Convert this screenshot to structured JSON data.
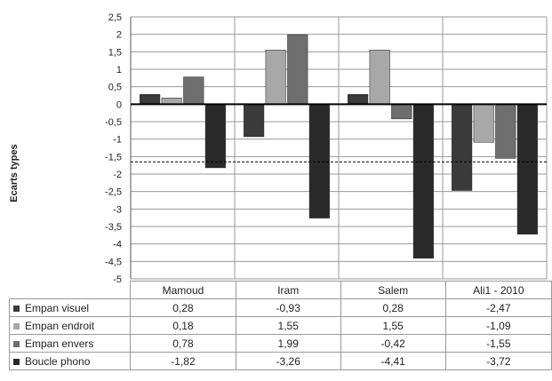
{
  "chart_data": {
    "type": "bar",
    "title": "",
    "xlabel": "",
    "ylabel": "Ecarts types",
    "ylim": [
      -5,
      2.5
    ],
    "ytick_step": 0.5,
    "grid": true,
    "reference_line": -1.65,
    "categories": [
      "Mamoud",
      "Iram",
      "Salem",
      "Ali1 - 2010"
    ],
    "series": [
      {
        "name": "Empan visuel",
        "color": "#3a3a3a",
        "values": [
          0.28,
          -0.93,
          0.28,
          -2.47
        ],
        "labels": [
          "0,28",
          "-0,93",
          "0,28",
          "-2,47"
        ]
      },
      {
        "name": "Empan endroit",
        "color": "#a8a8a8",
        "values": [
          0.18,
          1.55,
          1.55,
          -1.09
        ],
        "labels": [
          "0,18",
          "1,55",
          "1,55",
          "-1,09"
        ]
      },
      {
        "name": "Empan envers",
        "color": "#6e6e6e",
        "values": [
          0.78,
          1.99,
          -0.42,
          -1.55
        ],
        "labels": [
          "0,78",
          "1,99",
          "-0,42",
          "-1,55"
        ]
      },
      {
        "name": "Boucle phono",
        "color": "#2a2a2a",
        "values": [
          -1.82,
          -3.26,
          -4.41,
          -3.72
        ],
        "labels": [
          "-1,82",
          "-3,26",
          "-4,41",
          "-3,72"
        ]
      }
    ],
    "yticks": [
      "2,5",
      "2",
      "1,5",
      "1",
      "0,5",
      "0",
      "-0,5",
      "-1",
      "-1,5",
      "-2",
      "-2,5",
      "-3",
      "-3,5",
      "-4",
      "-4,5",
      "-5"
    ]
  }
}
